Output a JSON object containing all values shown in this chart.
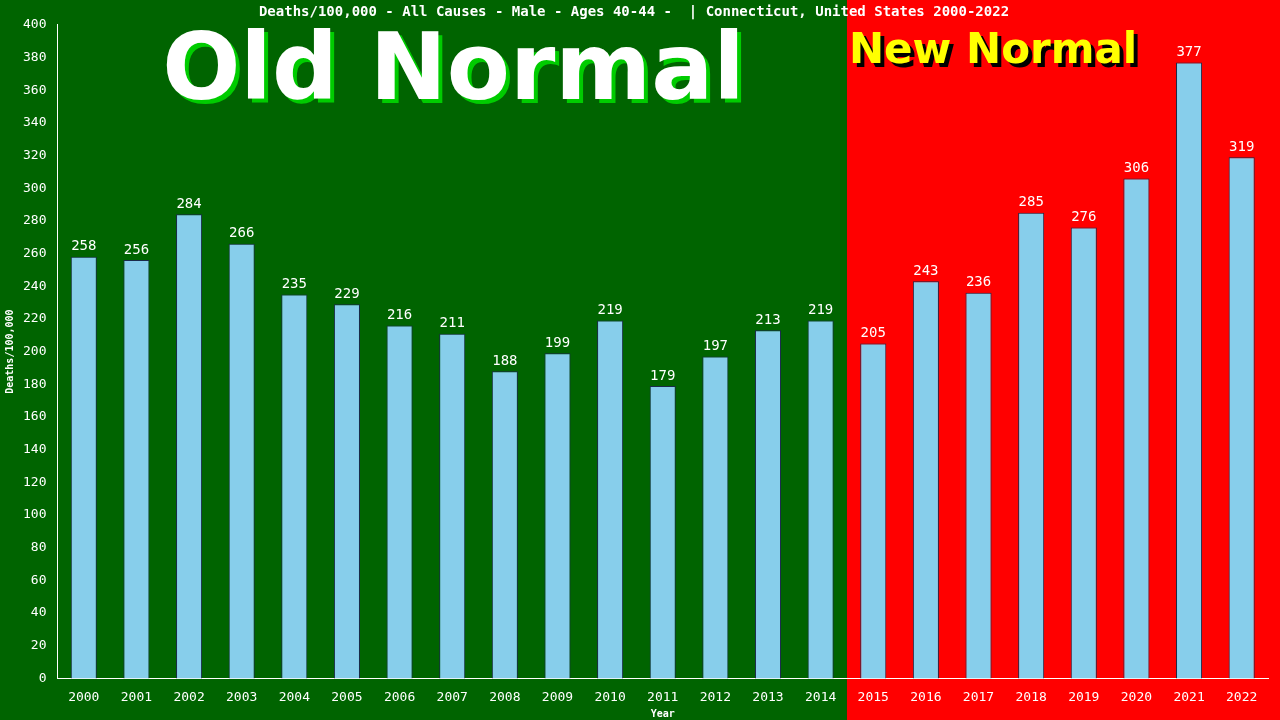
{
  "chart_data": {
    "type": "bar",
    "title": "Deaths/100,000 - All Causes - Male - Ages 40-44 -  | Connecticut, United States 2000-2022",
    "xlabel": "Year",
    "ylabel": "Deaths/100,000",
    "categories": [
      "2000",
      "2001",
      "2002",
      "2003",
      "2004",
      "2005",
      "2006",
      "2007",
      "2008",
      "2009",
      "2010",
      "2011",
      "2012",
      "2013",
      "2014",
      "2015",
      "2016",
      "2017",
      "2018",
      "2019",
      "2020",
      "2021",
      "2022"
    ],
    "values": [
      258,
      256,
      284,
      266,
      235,
      229,
      216,
      211,
      188,
      199,
      219,
      179,
      197,
      213,
      219,
      205,
      243,
      236,
      285,
      276,
      306,
      377,
      319
    ],
    "color": "#87ceeb",
    "data_labels": true,
    "grid": false,
    "legend": false,
    "ylim": [
      0,
      400
    ],
    "yticks": [
      0,
      20,
      40,
      60,
      80,
      100,
      120,
      140,
      160,
      180,
      200,
      220,
      240,
      260,
      280,
      300,
      320,
      340,
      360,
      380,
      400
    ],
    "bands": [
      {
        "axis": "x",
        "from": "2000",
        "to": "2014",
        "label": "Old Normal",
        "color": "#006400"
      },
      {
        "axis": "x",
        "from": "2015",
        "to": "2022",
        "label": "New Normal",
        "color": "#ff0000"
      }
    ]
  }
}
